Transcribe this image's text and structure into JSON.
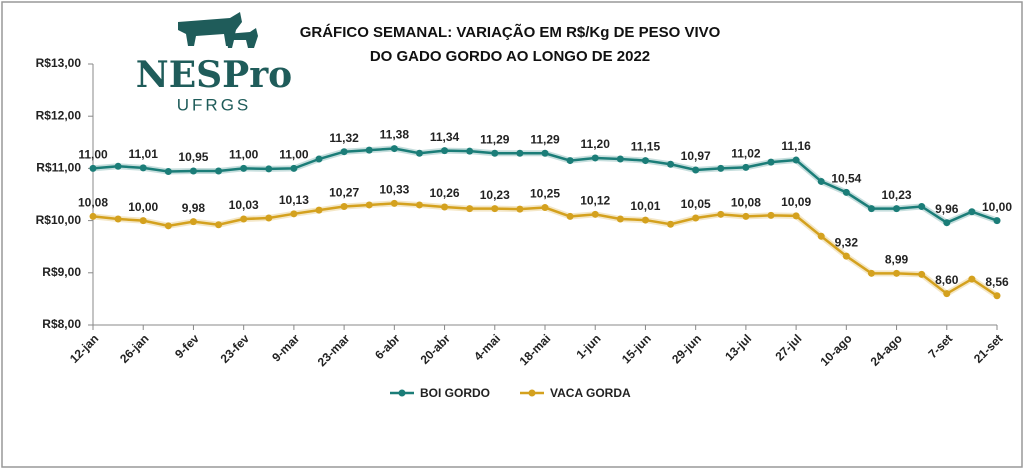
{
  "logo": {
    "title": "NESPro",
    "subtitle": "UFRGS"
  },
  "chart_data": {
    "type": "line",
    "title": [
      "GRÁFICO SEMANAL: VARIAÇÃO EM R$/Kg DE PESO VIVO",
      "DO GADO GORDO AO LONGO DE 2022"
    ],
    "categories": [
      "12-jan",
      null,
      "26-jan",
      null,
      "9-fev",
      null,
      "23-fev",
      null,
      "9-mar",
      null,
      "23-mar",
      null,
      "6-abr",
      null,
      "20-abr",
      null,
      "4-mai",
      null,
      "18-mai",
      null,
      "1-jun",
      null,
      "15-jun",
      null,
      "29-jun",
      null,
      "13-jul",
      null,
      "27-jul",
      null,
      "10-ago",
      null,
      "24-ago",
      null,
      "7-set",
      null,
      "21-set"
    ],
    "series": [
      {
        "name": "BOI GORDO",
        "color": "#1b7d78",
        "values": [
          11.0,
          11.04,
          11.01,
          10.94,
          10.95,
          10.95,
          11.0,
          10.99,
          11.0,
          11.18,
          11.32,
          11.35,
          11.38,
          11.29,
          11.34,
          11.33,
          11.29,
          11.29,
          11.29,
          11.15,
          11.2,
          11.18,
          11.15,
          11.08,
          10.97,
          11.0,
          11.02,
          11.12,
          11.16,
          10.75,
          10.54,
          10.23,
          10.23,
          10.27,
          9.96,
          10.17,
          10.0
        ],
        "value_labels": [
          "11,00",
          null,
          "11,01",
          null,
          "10,95",
          null,
          "11,00",
          null,
          "11,00",
          null,
          "11,32",
          null,
          "11,38",
          null,
          "11,34",
          null,
          "11,29",
          null,
          "11,29",
          null,
          "11,20",
          null,
          "11,15",
          null,
          "10,97",
          null,
          "11,02",
          null,
          "11,16",
          null,
          "10,54",
          null,
          "10,23",
          null,
          "9,96",
          null,
          "10,00"
        ]
      },
      {
        "name": "VACA GORDA",
        "color": "#d4a11e",
        "values": [
          10.08,
          10.03,
          10.0,
          9.9,
          9.98,
          9.92,
          10.03,
          10.05,
          10.13,
          10.2,
          10.27,
          10.3,
          10.33,
          10.3,
          10.26,
          10.23,
          10.23,
          10.22,
          10.25,
          10.08,
          10.12,
          10.03,
          10.01,
          9.93,
          10.05,
          10.12,
          10.08,
          10.1,
          10.09,
          9.7,
          9.32,
          8.99,
          8.99,
          8.97,
          8.6,
          8.88,
          8.56
        ],
        "value_labels": [
          "10,08",
          null,
          "10,00",
          null,
          "9,98",
          null,
          "10,03",
          null,
          "10,13",
          null,
          "10,27",
          null,
          "10,33",
          null,
          "10,26",
          null,
          "10,23",
          null,
          "10,25",
          null,
          "10,12",
          null,
          "10,01",
          null,
          "10,05",
          null,
          "10,08",
          null,
          "10,09",
          null,
          "9,32",
          null,
          "8,99",
          null,
          "8,60",
          null,
          "8,56"
        ]
      }
    ],
    "ylim": [
      8,
      13
    ],
    "yticks": [
      {
        "value": 8,
        "label": "R$8,00"
      },
      {
        "value": 9,
        "label": "R$9,00"
      },
      {
        "value": 10,
        "label": "R$10,00"
      },
      {
        "value": 11,
        "label": "R$11,00"
      },
      {
        "value": 12,
        "label": "R$12,00"
      },
      {
        "value": 13,
        "label": "R$13,00"
      }
    ],
    "grid": false,
    "legend": "bottom"
  }
}
